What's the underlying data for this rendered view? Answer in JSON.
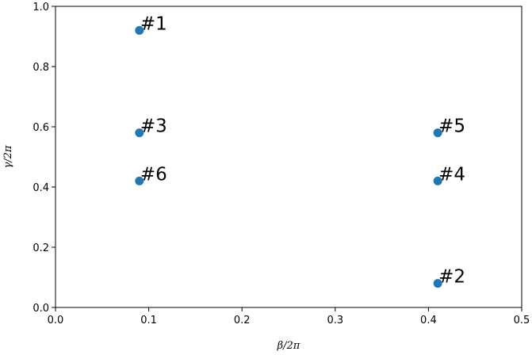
{
  "chart_data": {
    "type": "scatter",
    "title": "",
    "xlabel": "β/2π",
    "ylabel": "γ/2π",
    "xlim": [
      0.0,
      0.5
    ],
    "ylim": [
      0.0,
      1.0
    ],
    "xticks": [
      "0.0",
      "0.1",
      "0.2",
      "0.3",
      "0.4",
      "0.5"
    ],
    "xtick_values": [
      0.0,
      0.1,
      0.2,
      0.3,
      0.4,
      0.5
    ],
    "yticks": [
      "0.0",
      "0.2",
      "0.4",
      "0.6",
      "0.8",
      "1.0"
    ],
    "ytick_values": [
      0.0,
      0.2,
      0.4,
      0.6,
      0.8,
      1.0
    ],
    "grid": false,
    "marker_color": "#1f77b4",
    "points": [
      {
        "x": 0.09,
        "y": 0.92,
        "label": "#1"
      },
      {
        "x": 0.41,
        "y": 0.08,
        "label": "#2"
      },
      {
        "x": 0.09,
        "y": 0.58,
        "label": "#3"
      },
      {
        "x": 0.41,
        "y": 0.42,
        "label": "#4"
      },
      {
        "x": 0.41,
        "y": 0.58,
        "label": "#5"
      },
      {
        "x": 0.09,
        "y": 0.42,
        "label": "#6"
      }
    ]
  }
}
